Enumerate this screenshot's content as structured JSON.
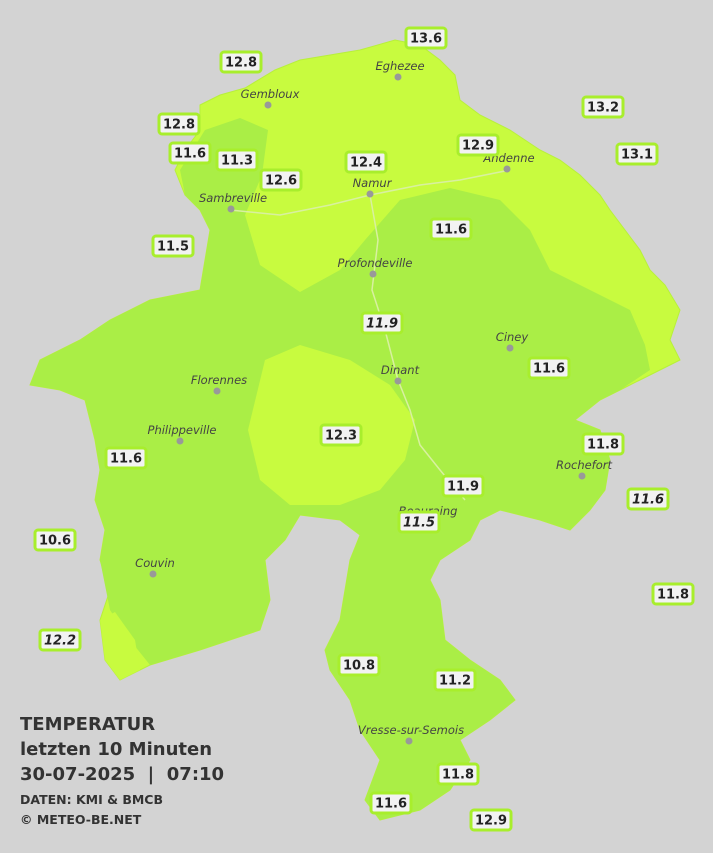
{
  "header": {
    "title": "TEMPERATUR",
    "subtitle": "letzten 10 Minuten",
    "datetime": "30-07-2025  |  07:10",
    "source": "DATEN: KMI & BMCB",
    "credit": "© METEO-BE.NET"
  },
  "cities": [
    "Eghezee",
    "Gembloux",
    "Andenne",
    "Namur",
    "Sambreville",
    "Profondeville",
    "Ciney",
    "Dinant",
    "Florennes",
    "Philippeville",
    "Rochefort",
    "Beauraing",
    "Couvin",
    "Vresse-sur-Semois"
  ],
  "stations": [
    {
      "value": 13.6
    },
    {
      "value": 12.8
    },
    {
      "value": 13.2
    },
    {
      "value": 12.8
    },
    {
      "value": 12.9
    },
    {
      "value": 11.6
    },
    {
      "value": 11.3
    },
    {
      "value": 12.4
    },
    {
      "value": 13.1
    },
    {
      "value": 12.6
    },
    {
      "value": 11.6
    },
    {
      "value": 11.5
    },
    {
      "value": 11.9,
      "italic": true
    },
    {
      "value": 11.6
    },
    {
      "value": 12.3
    },
    {
      "value": 11.8
    },
    {
      "value": 11.6
    },
    {
      "value": 11.9
    },
    {
      "value": 11.6,
      "italic": true
    },
    {
      "value": 11.5,
      "italic": true
    },
    {
      "value": 10.6
    },
    {
      "value": 11.8
    },
    {
      "value": 12.2,
      "italic": true
    },
    {
      "value": 10.8
    },
    {
      "value": 11.2
    },
    {
      "value": 11.8
    },
    {
      "value": 11.6
    },
    {
      "value": 12.9
    }
  ]
}
